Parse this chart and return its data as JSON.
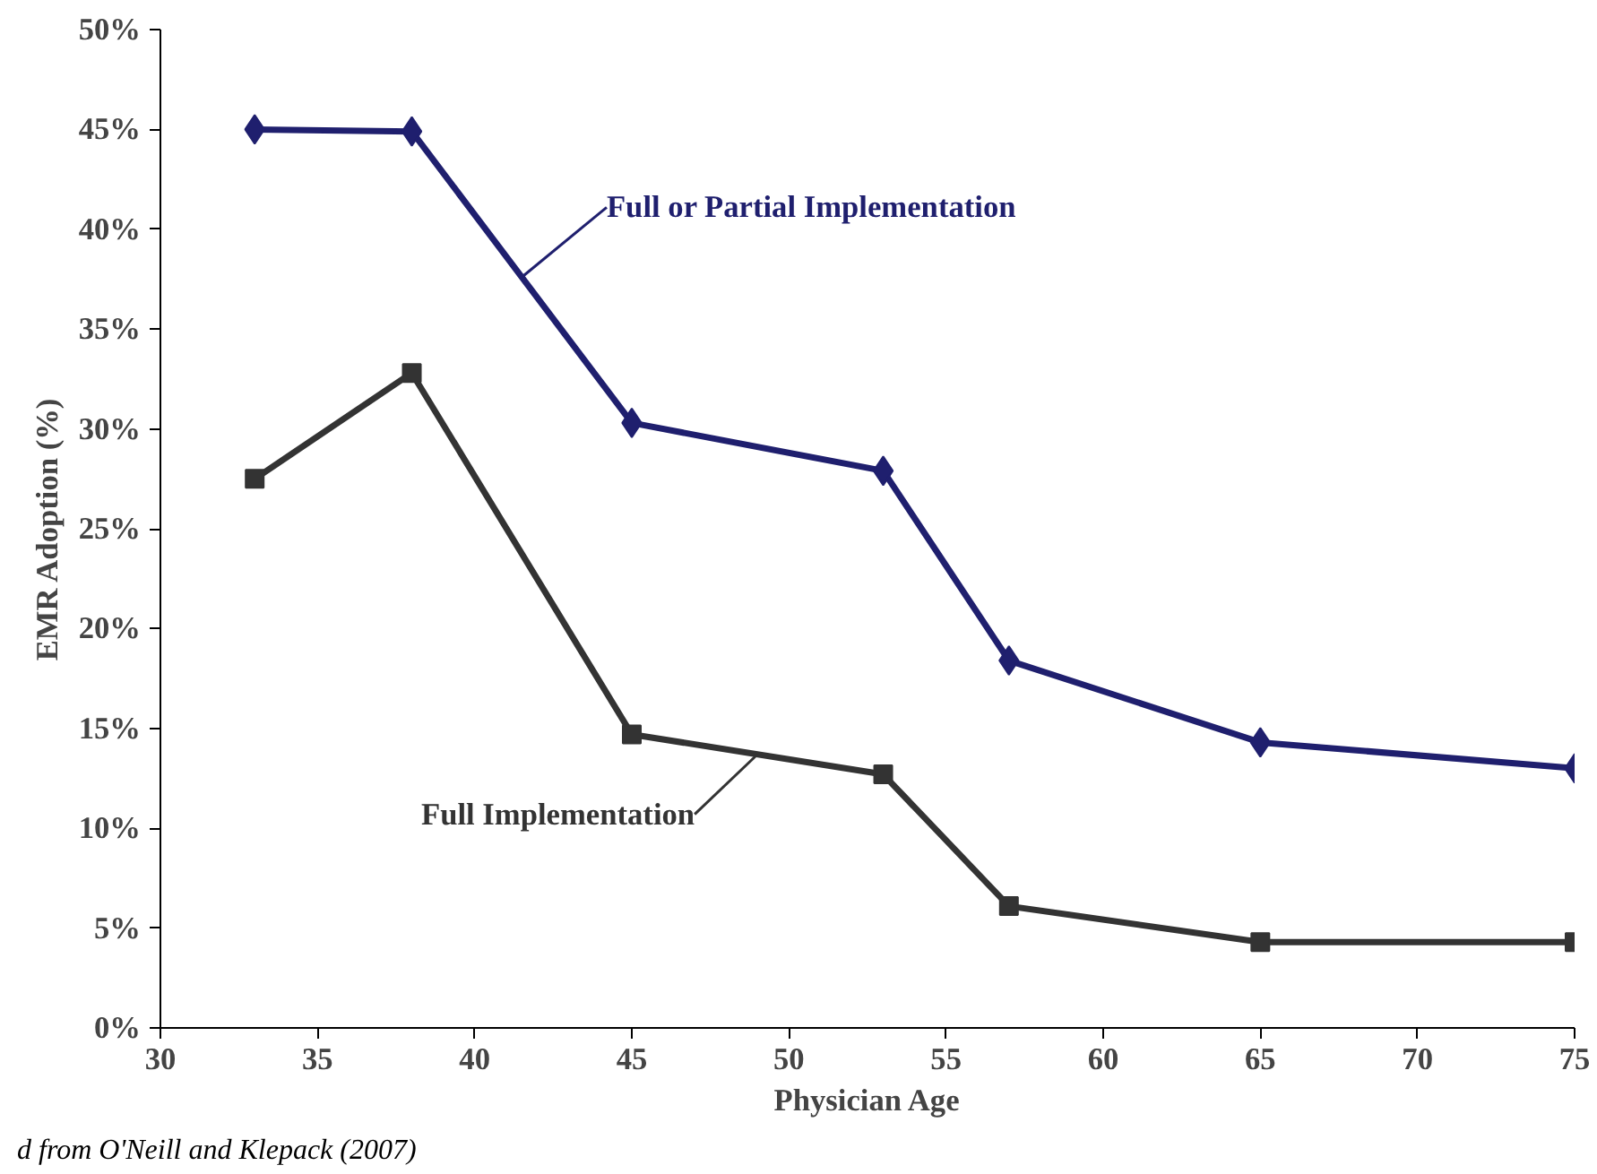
{
  "chart_data": {
    "type": "line",
    "xlabel": "Physician Age",
    "ylabel": "EMR Adoption (%)",
    "series": [
      {
        "name": "Full or Partial Implementation",
        "color": "#1f1f6e",
        "marker": "diamond",
        "x": [
          33,
          38,
          45,
          53,
          57,
          65,
          75
        ],
        "values": [
          45.0,
          44.9,
          30.3,
          27.9,
          18.4,
          14.3,
          13.0
        ]
      },
      {
        "name": "Full Implementation",
        "color": "#333333",
        "marker": "square",
        "x": [
          33,
          38,
          45,
          53,
          57,
          65,
          75
        ],
        "values": [
          27.5,
          32.8,
          14.7,
          12.7,
          6.1,
          4.3,
          4.3
        ]
      }
    ],
    "xlim": [
      30,
      75
    ],
    "xticks": [
      30,
      35,
      40,
      45,
      50,
      55,
      60,
      65,
      70,
      75
    ],
    "ylim": [
      0,
      50
    ],
    "yticks": [
      {
        "value": 0,
        "label": "0%"
      },
      {
        "value": 5,
        "label": "5%"
      },
      {
        "value": 10,
        "label": "10%"
      },
      {
        "value": 15,
        "label": "15%"
      },
      {
        "value": 20,
        "label": "20%"
      },
      {
        "value": 25,
        "label": "25%"
      },
      {
        "value": 30,
        "label": "30%"
      },
      {
        "value": 35,
        "label": "35%"
      },
      {
        "value": 40,
        "label": "40%"
      },
      {
        "value": 45,
        "label": "45%"
      },
      {
        "value": 50,
        "label": "50%"
      }
    ],
    "annotations": [
      "d from O'Neill and Klepack (2007)"
    ],
    "grid": false,
    "legend": false,
    "line_style": "solid"
  }
}
